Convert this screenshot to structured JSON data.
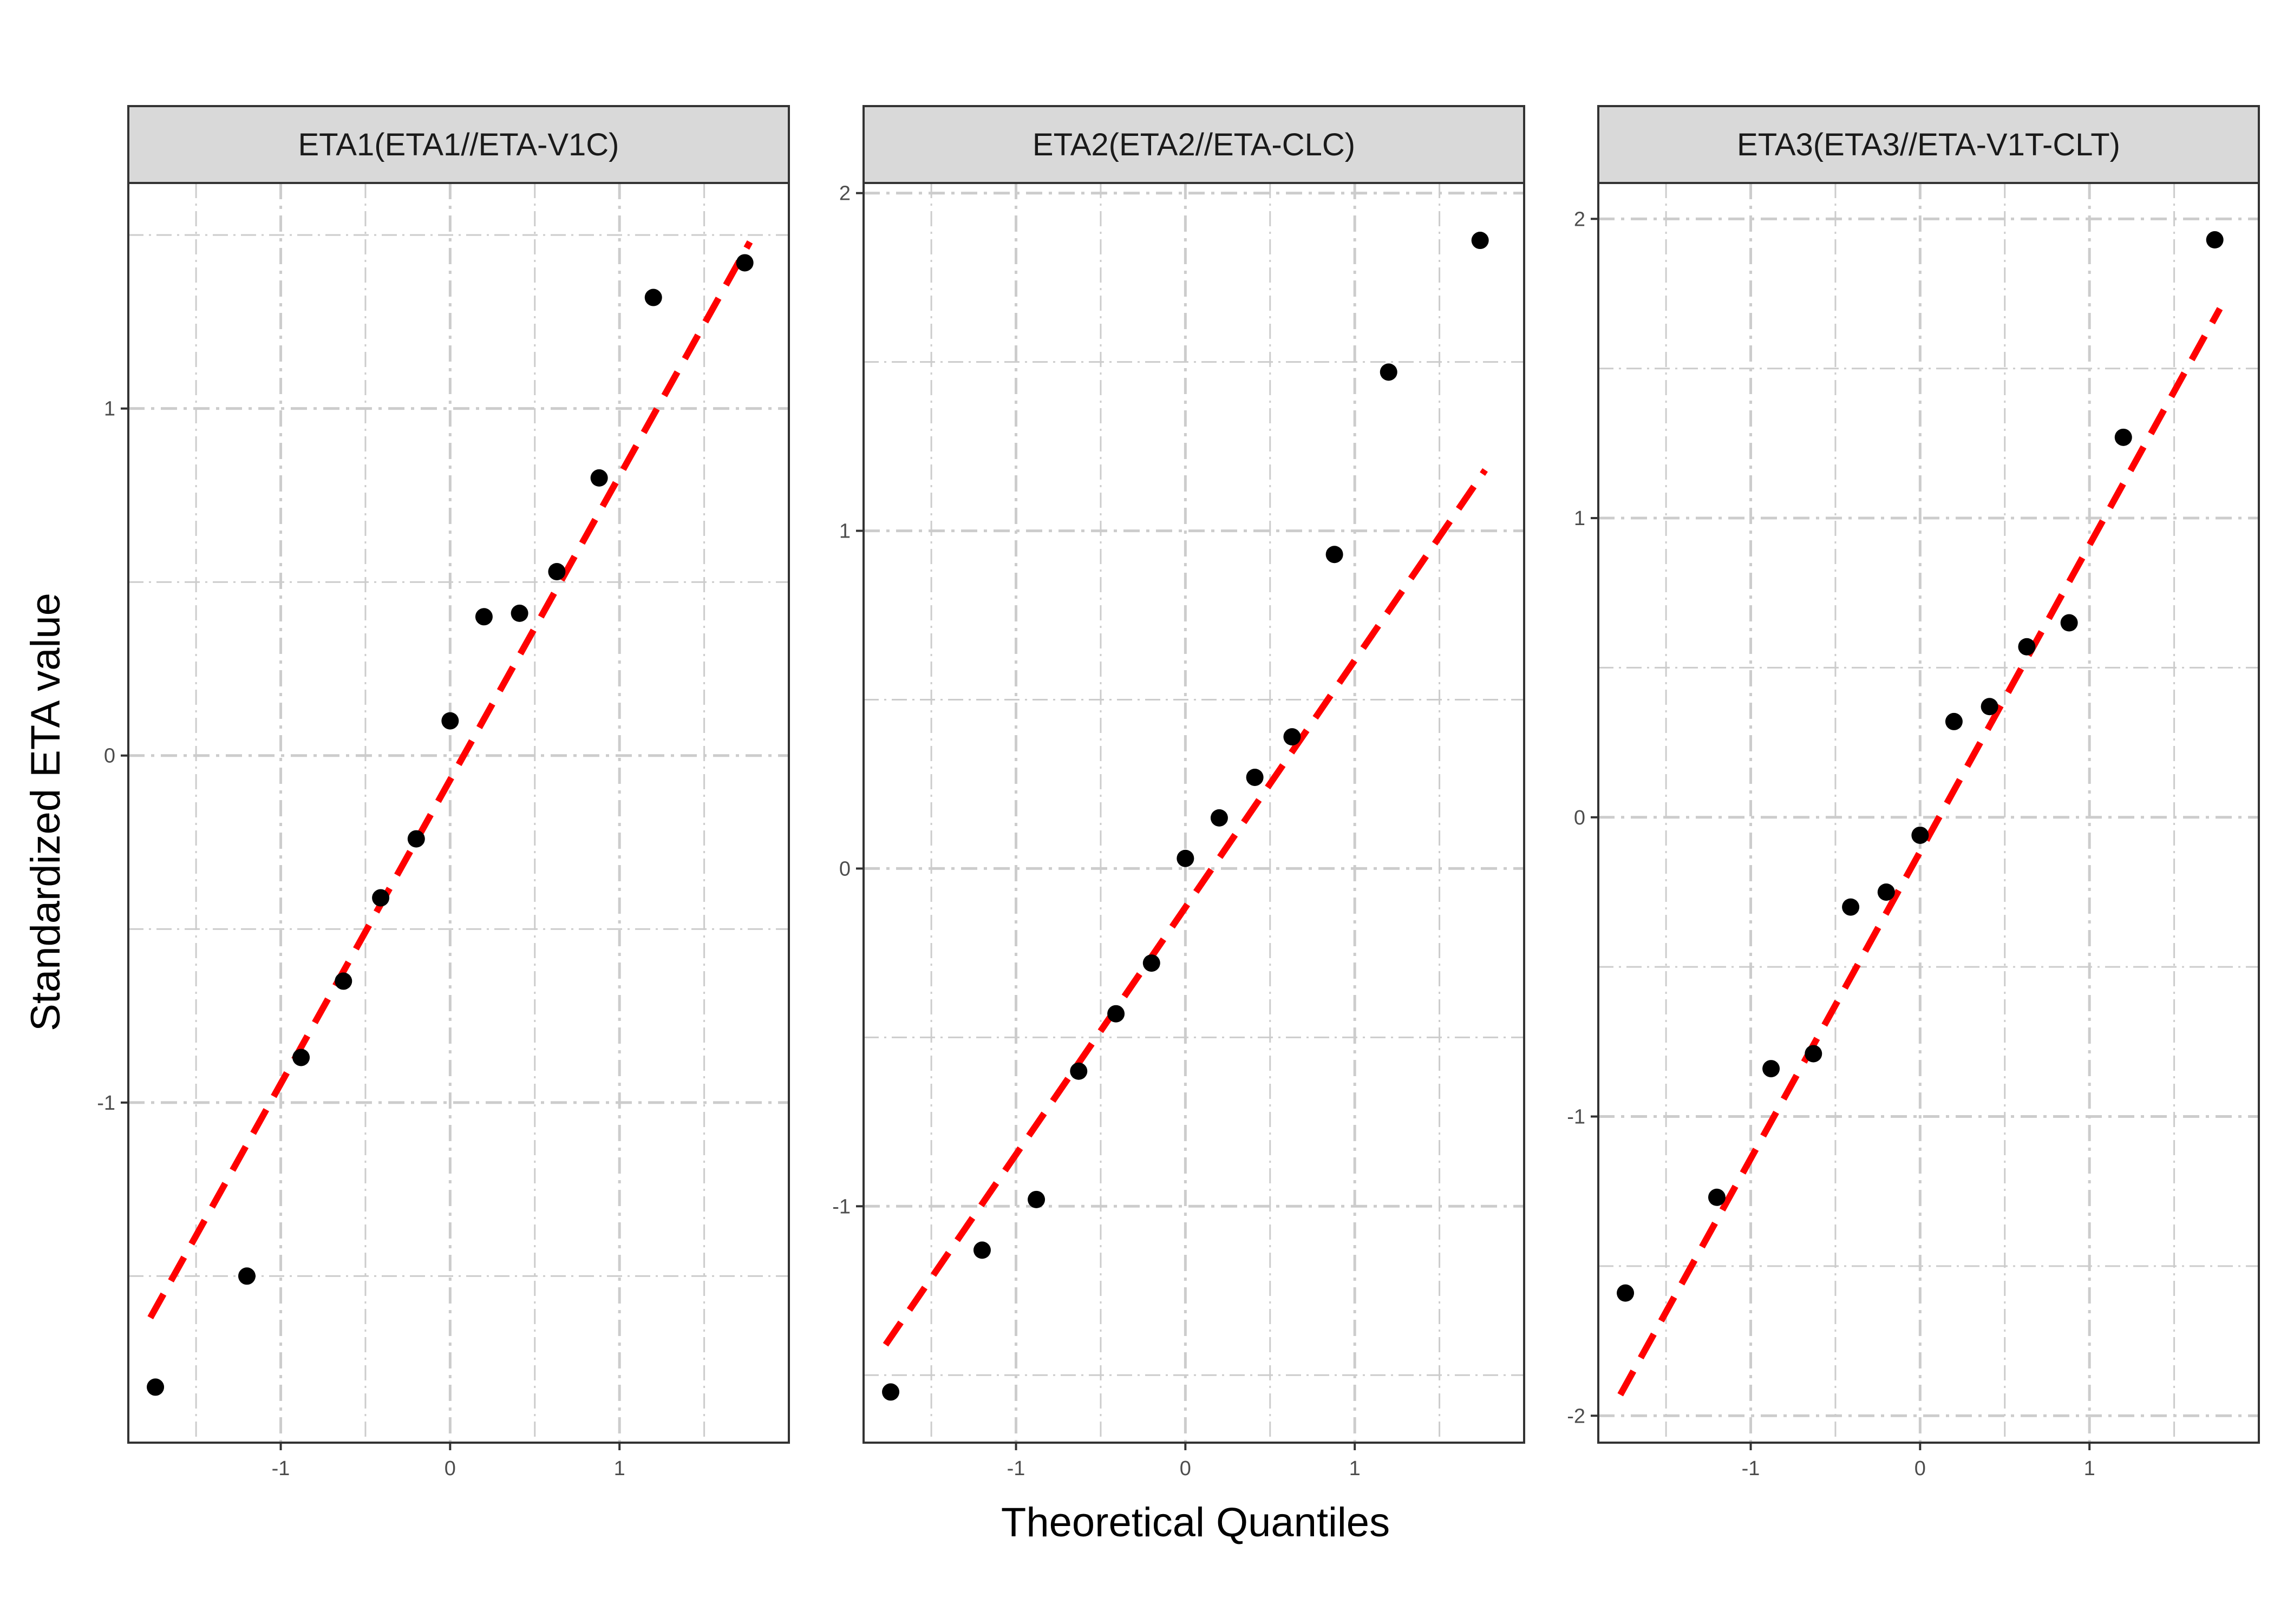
{
  "chart_data": {
    "type": "scatter",
    "facet_layout": "1 row x 3 columns, free y scales",
    "xlabel": "Theoretical Quantiles",
    "ylabel": "Standardized ETA value",
    "grid": true,
    "colors": {
      "points": "#000000",
      "reference_line": "#ff0000",
      "strip_fill": "#d9d9d9",
      "grid": "#cccccc",
      "panel_border": "#333333"
    },
    "panels": [
      {
        "strip_label": "ETA1(ETA1//ETA-V1C)",
        "xlim": [
          -1.9,
          2.0
        ],
        "ylim": [
          -1.98,
          1.65
        ],
        "x_ticks": [
          -1,
          0,
          1
        ],
        "y_ticks": [
          -1,
          0,
          1
        ],
        "points": {
          "x": [
            -1.74,
            -1.2,
            -0.88,
            -0.63,
            -0.41,
            -0.2,
            0,
            0.2,
            0.41,
            0.63,
            0.88,
            1.2,
            1.74
          ],
          "y": [
            -1.82,
            -1.5,
            -0.87,
            -0.65,
            -0.41,
            -0.24,
            0.1,
            0.4,
            0.41,
            0.53,
            0.8,
            1.32,
            1.42
          ]
        },
        "reference_line": {
          "x": [
            -1.77,
            1.77
          ],
          "y": [
            -1.62,
            1.48
          ]
        }
      },
      {
        "strip_label": "ETA2(ETA2//ETA-CLC)",
        "xlim": [
          -1.9,
          2.0
        ],
        "ylim": [
          -1.7,
          2.03
        ],
        "x_ticks": [
          -1,
          0,
          1
        ],
        "y_ticks": [
          -1,
          0,
          1,
          2
        ],
        "points": {
          "x": [
            -1.74,
            -1.2,
            -0.88,
            -0.63,
            -0.41,
            -0.2,
            0,
            0.2,
            0.41,
            0.63,
            0.88,
            1.2,
            1.74
          ],
          "y": [
            -1.55,
            -1.13,
            -0.98,
            -0.6,
            -0.43,
            -0.28,
            0.03,
            0.15,
            0.27,
            0.39,
            0.93,
            1.47,
            1.86
          ]
        },
        "reference_line": {
          "x": [
            -1.77,
            1.77
          ],
          "y": [
            -1.41,
            1.18
          ]
        }
      },
      {
        "strip_label": "ETA3(ETA3//ETA-V1T-CLT)",
        "xlim": [
          -1.9,
          2.0
        ],
        "ylim": [
          -2.09,
          2.12
        ],
        "x_ticks": [
          -1,
          0,
          1
        ],
        "y_ticks": [
          -2,
          -1,
          0,
          1,
          2
        ],
        "points": {
          "x": [
            -1.74,
            -1.2,
            -0.88,
            -0.63,
            -0.41,
            -0.2,
            0,
            0.2,
            0.41,
            0.63,
            0.88,
            1.2,
            1.74
          ],
          "y": [
            -1.59,
            -1.27,
            -0.84,
            -0.79,
            -0.3,
            -0.25,
            -0.06,
            0.32,
            0.37,
            0.57,
            0.65,
            1.27,
            1.93
          ]
        },
        "reference_line": {
          "x": [
            -1.77,
            1.77
          ],
          "y": [
            -1.93,
            1.7
          ]
        }
      }
    ]
  }
}
